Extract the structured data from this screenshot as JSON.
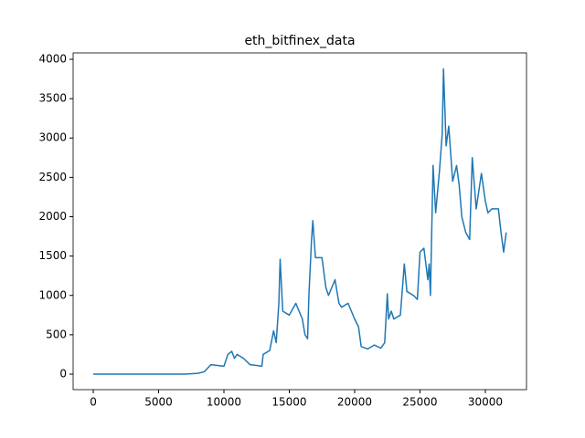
{
  "chart_data": {
    "type": "line",
    "title": "eth_bitfinex_data",
    "x": [
      0,
      7000,
      8000,
      8500,
      9000,
      9500,
      10000,
      10300,
      10600,
      10800,
      11000,
      11500,
      12000,
      12500,
      12900,
      13000,
      13500,
      13800,
      14000,
      14200,
      14300,
      14500,
      15000,
      15500,
      16000,
      16200,
      16400,
      16500,
      16700,
      16800,
      17000,
      17500,
      17800,
      18000,
      18500,
      18800,
      19000,
      19500,
      20000,
      20300,
      20500,
      21000,
      21500,
      22000,
      22300,
      22500,
      22600,
      22800,
      23000,
      23500,
      23800,
      24000,
      24500,
      24800,
      25000,
      25300,
      25600,
      25700,
      25800,
      26000,
      26200,
      26500,
      26700,
      26800,
      27000,
      27200,
      27500,
      27800,
      28000,
      28200,
      28500,
      28800,
      29000,
      29300,
      29700,
      30000,
      30200,
      30500,
      31000,
      31200,
      31400,
      31600
    ],
    "series": [
      {
        "color": "#1f77b4",
        "values": [
          0,
          0,
          10,
          30,
          120,
          110,
          100,
          250,
          290,
          200,
          250,
          200,
          120,
          110,
          100,
          250,
          300,
          550,
          400,
          900,
          1460,
          800,
          750,
          900,
          700,
          500,
          450,
          1000,
          1700,
          1950,
          1480,
          1480,
          1100,
          1000,
          1200,
          900,
          850,
          900,
          700,
          600,
          350,
          320,
          370,
          330,
          400,
          1020,
          700,
          800,
          700,
          750,
          1400,
          1050,
          1000,
          950,
          1550,
          1600,
          1200,
          1400,
          1000,
          2650,
          2050,
          2600,
          3050,
          3880,
          2900,
          3150,
          2450,
          2650,
          2400,
          2000,
          1800,
          1710,
          2750,
          2100,
          2550,
          2200,
          2050,
          2100,
          2100,
          1800,
          1550,
          1800
        ]
      }
    ],
    "xlim": [
      -1540,
      33150
    ],
    "ylim": [
      -197,
      4081
    ],
    "xticks": [
      0,
      5000,
      10000,
      15000,
      20000,
      25000,
      30000
    ],
    "yticks": [
      0,
      500,
      1000,
      1500,
      2000,
      2500,
      3000,
      3500,
      4000
    ],
    "grid": false
  }
}
